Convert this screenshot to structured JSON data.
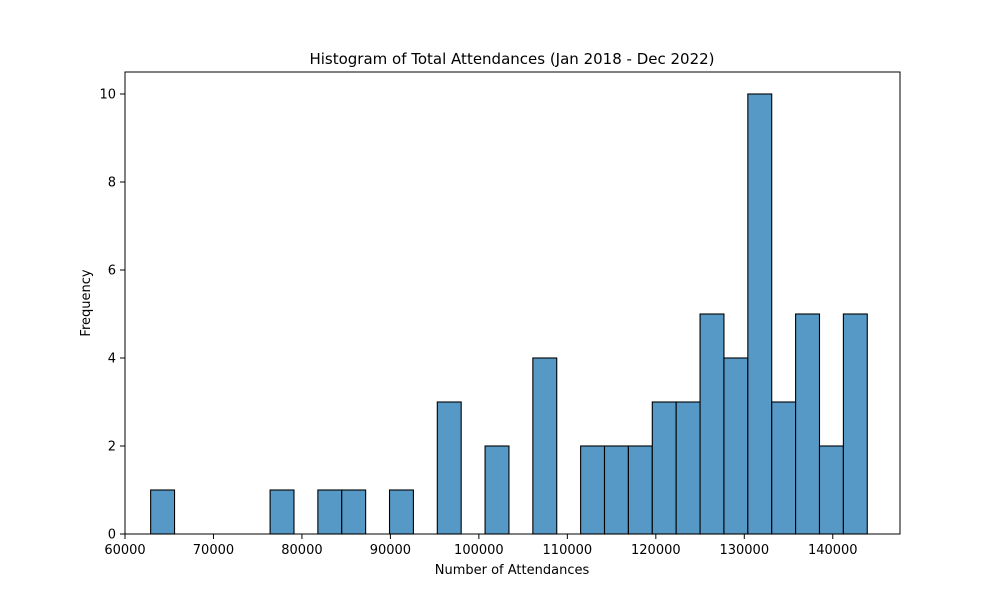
{
  "chart_data": {
    "type": "bar",
    "title": "Histogram of Total Attendances (Jan 2018 - Dec 2022)",
    "xlabel": "Number of Attendances",
    "ylabel": "Frequency",
    "xlim": [
      60000,
      147600
    ],
    "ylim": [
      0,
      10.5
    ],
    "grid": false,
    "bar_color": "#5799c6",
    "edge_color": "#000000",
    "bins": {
      "start": 62900,
      "width": 2700,
      "counts": [
        1,
        0,
        0,
        0,
        0,
        1,
        0,
        1,
        1,
        0,
        1,
        0,
        3,
        0,
        2,
        0,
        4,
        0,
        2,
        2,
        2,
        3,
        3,
        5,
        4,
        10,
        3,
        5,
        2,
        5
      ]
    },
    "x_ticks": [
      60000,
      70000,
      80000,
      90000,
      100000,
      110000,
      120000,
      130000,
      140000
    ],
    "y_ticks": [
      0,
      2,
      4,
      6,
      8,
      10
    ]
  }
}
